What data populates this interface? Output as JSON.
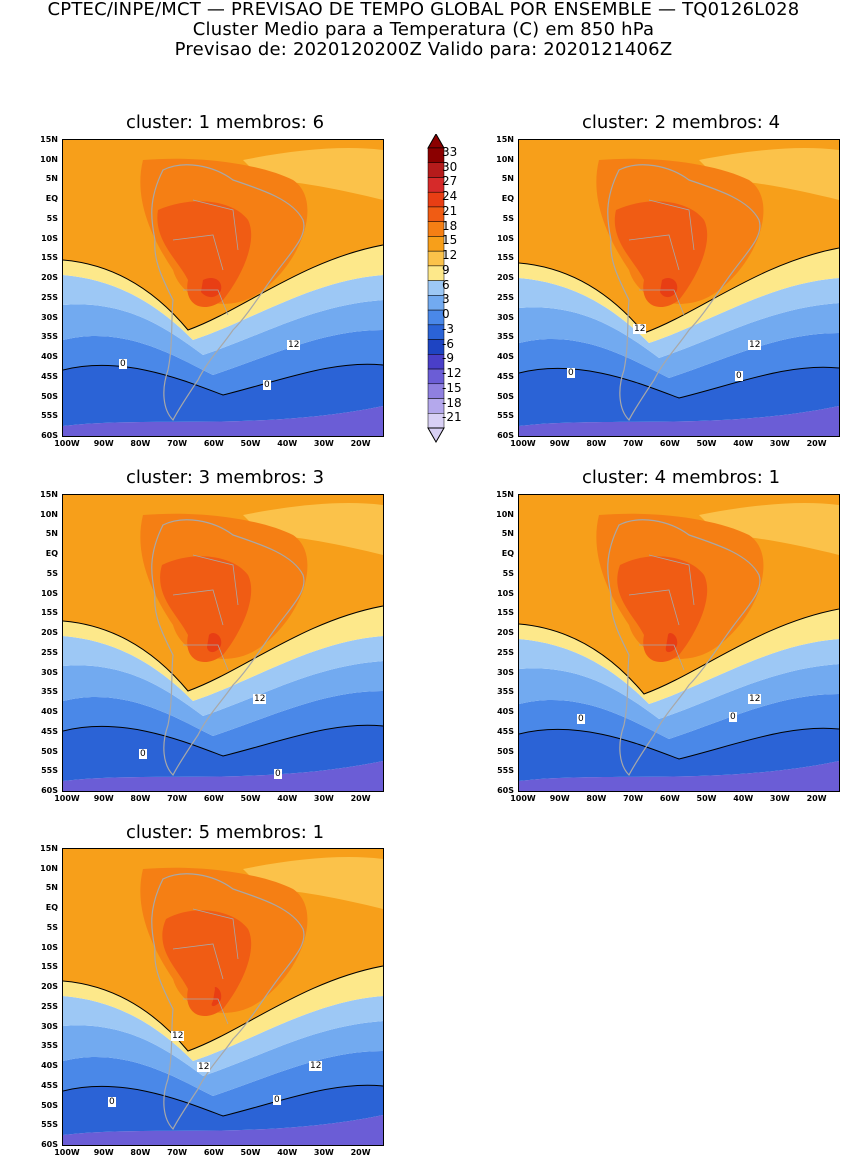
{
  "header": {
    "line1": "CPTEC/INPE/MCT — PREVISAO DE TEMPO GLOBAL POR ENSEMBLE — TQ0126L028",
    "line2": "Cluster Medio para a Temperatura (C) em 850 hPa",
    "line3": "Previsao de: 2020120200Z   Valido para: 2020121406Z"
  },
  "axes": {
    "yticks": [
      "15N",
      "10N",
      "5N",
      "EQ",
      "5S",
      "10S",
      "15S",
      "20S",
      "25S",
      "30S",
      "35S",
      "40S",
      "45S",
      "50S",
      "55S",
      "60S"
    ],
    "xticks": [
      "100W",
      "90W",
      "80W",
      "70W",
      "60W",
      "50W",
      "40W",
      "30W",
      "20W"
    ]
  },
  "colorbar": {
    "levels": [
      "33",
      "30",
      "27",
      "24",
      "21",
      "18",
      "15",
      "12",
      "9",
      "6",
      "3",
      "0",
      "-3",
      "-6",
      "-9",
      "-12",
      "-15",
      "-18",
      "-21"
    ],
    "colors": [
      "#8b0000",
      "#b51b1b",
      "#d62a2a",
      "#e83e14",
      "#f05c14",
      "#f57f14",
      "#f79f1a",
      "#fbc24a",
      "#fde88a",
      "#9dc8f5",
      "#72aaf0",
      "#4a88e8",
      "#2b63d6",
      "#1e44c2",
      "#4a3fc8",
      "#6b5dd6",
      "#8f80e0",
      "#b4a8ec",
      "#d8d0f5"
    ]
  },
  "panels": [
    {
      "title": "cluster: 1   membros: 6",
      "labels": [
        "12",
        "0",
        "0"
      ]
    },
    {
      "title": "cluster: 2   membros: 4",
      "labels": [
        "12",
        "12",
        "0",
        "0"
      ]
    },
    {
      "title": "cluster: 3   membros: 3",
      "labels": [
        "12",
        "0",
        "0"
      ]
    },
    {
      "title": "cluster: 4   membros: 1",
      "labels": [
        "12",
        "0",
        "0"
      ]
    },
    {
      "title": "cluster: 5   membros: 1",
      "labels": [
        "12",
        "12",
        "12",
        "0",
        "0"
      ]
    }
  ]
}
